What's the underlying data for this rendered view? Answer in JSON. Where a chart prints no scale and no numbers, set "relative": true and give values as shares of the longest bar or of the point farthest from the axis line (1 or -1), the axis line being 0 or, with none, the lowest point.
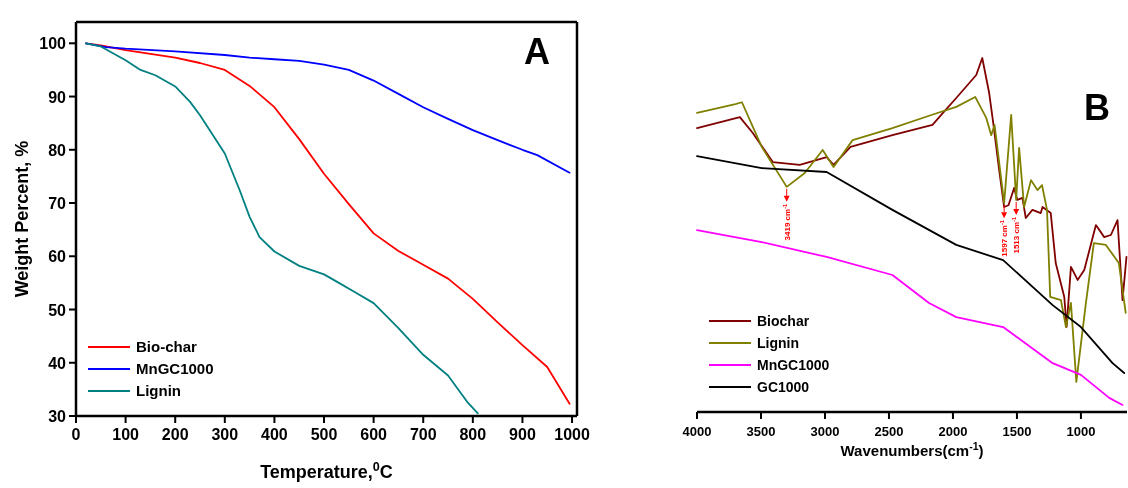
{
  "chart_data": [
    {
      "type": "line",
      "title": "A",
      "xlabel": "Temperature,$^{0}$C",
      "ylabel": "Weight Percent, %",
      "xlim": [
        0,
        1010
      ],
      "ylim": [
        30,
        104
      ],
      "xticks": [
        0,
        100,
        200,
        300,
        400,
        500,
        600,
        700,
        800,
        900,
        1000
      ],
      "yticks": [
        30,
        40,
        50,
        60,
        70,
        80,
        90,
        100
      ],
      "legend": "bottom left",
      "grid": false,
      "series": [
        {
          "name": "Bio-char",
          "color": "#ff0000",
          "x": [
            20,
            50,
            100,
            150,
            200,
            250,
            300,
            350,
            400,
            450,
            500,
            550,
            600,
            650,
            700,
            750,
            800,
            850,
            900,
            950,
            995
          ],
          "values": [
            100,
            99.6,
            98.7,
            98,
            97.3,
            96.3,
            95,
            92,
            88,
            82,
            75.5,
            69.8,
            64.3,
            61,
            58.4,
            55.8,
            52,
            47.6,
            43.3,
            39.2,
            32.3
          ]
        },
        {
          "name": "MnGC1000",
          "color": "#0000ff",
          "x": [
            20,
            60,
            100,
            200,
            300,
            350,
            400,
            450,
            500,
            550,
            600,
            650,
            700,
            750,
            800,
            850,
            900,
            930,
            995
          ],
          "values": [
            100,
            99.3,
            99,
            98.5,
            97.8,
            97.3,
            97,
            96.7,
            96,
            95,
            93,
            90.5,
            88,
            85.8,
            83.7,
            81.8,
            80,
            79,
            75.7
          ]
        },
        {
          "name": "Lignin",
          "color": "#008080",
          "x": [
            20,
            50,
            100,
            130,
            160,
            200,
            230,
            250,
            300,
            330,
            350,
            370,
            400,
            450,
            500,
            530,
            560,
            600,
            650,
            700,
            750,
            790,
            810
          ],
          "values": [
            100,
            99.4,
            96.8,
            95,
            94,
            91.9,
            89,
            86.5,
            79.3,
            72.4,
            67.4,
            63.6,
            60.9,
            58.2,
            56.6,
            55,
            53.4,
            51.2,
            46.5,
            41.5,
            37.6,
            32.5,
            30.5
          ]
        }
      ]
    },
    {
      "type": "line",
      "title": "B",
      "xlabel": "Wavenumbers(cm$^{-1}$)",
      "relative": true,
      "xlim": [
        4000,
        640
      ],
      "xticks": [
        4000,
        3500,
        3000,
        2500,
        2000,
        1500,
        1000
      ],
      "legend": "bottom left",
      "grid": false,
      "annotations": [
        {
          "text": "3419 cm$^{-1}$",
          "x": 3299,
          "y": 0.636
        },
        {
          "text": "1597 cm$^{-1}$",
          "x": 1600,
          "y": 0.59
        },
        {
          "text": "1513 cm$^{-1}$",
          "x": 1506,
          "y": 0.599
        }
      ],
      "series": [
        {
          "name": "Biochar",
          "color": "#800000",
          "x": [
            4000,
            3665,
            3564,
            3408,
            3197,
            2987,
            2933,
            2800,
            2473,
            2160,
            2078,
            1974,
            1818,
            1771,
            1717,
            1685,
            1639,
            1600,
            1566,
            1522,
            1497,
            1457,
            1431,
            1379,
            1314,
            1300,
            1236,
            1197,
            1130,
            1112,
            1078,
            1026,
            974,
            883,
            818,
            766,
            714,
            675,
            644
          ],
          "values": [
            0.802,
            0.833,
            0.788,
            0.706,
            0.698,
            0.72,
            0.698,
            0.749,
            0.782,
            0.811,
            0.845,
            0.887,
            0.952,
            1,
            0.901,
            0.816,
            0.684,
            0.579,
            0.584,
            0.633,
            0.599,
            0.605,
            0.548,
            0.571,
            0.562,
            0.579,
            0.562,
            0.421,
            0.325,
            0.24,
            0.41,
            0.373,
            0.401,
            0.528,
            0.494,
            0.5,
            0.542,
            0.316,
            0.438
          ]
        },
        {
          "name": "Lignin",
          "color": "#808000",
          "x": [
            4000,
            3700,
            3649,
            3494,
            3299,
            3158,
            3018,
            2933,
            2784,
            2473,
            2169,
            1974,
            1826,
            1740,
            1701,
            1675,
            1600,
            1545,
            1506,
            1483,
            1444,
            1390,
            1340,
            1304,
            1265,
            1240,
            1156,
            1117,
            1078,
            1036,
            961,
            899,
            805,
            704,
            650
          ],
          "values": [
            0.845,
            0.87,
            0.875,
            0.749,
            0.636,
            0.675,
            0.74,
            0.692,
            0.768,
            0.802,
            0.839,
            0.862,
            0.89,
            0.831,
            0.782,
            0.811,
            0.59,
            0.839,
            0.599,
            0.746,
            0.579,
            0.655,
            0.627,
            0.641,
            0.571,
            0.325,
            0.316,
            0.24,
            0.308,
            0.085,
            0.308,
            0.477,
            0.472,
            0.421,
            0.28
          ]
        },
        {
          "name": "MnGC1000",
          "color": "#ff00ff",
          "x": [
            4000,
            3494,
            2987,
            2473,
            2187,
            1974,
            1608,
            1221,
            1000,
            779,
            675
          ],
          "values": [
            0.514,
            0.48,
            0.438,
            0.387,
            0.308,
            0.268,
            0.24,
            0.138,
            0.105,
            0.04,
            0.02
          ]
        },
        {
          "name": "GC1000",
          "color": "#000000",
          "x": [
            4000,
            3494,
            2987,
            2473,
            1974,
            1608,
            1221,
            1000,
            753,
            662
          ],
          "values": [
            0.723,
            0.689,
            0.678,
            0.571,
            0.472,
            0.429,
            0.302,
            0.24,
            0.138,
            0.11
          ]
        }
      ]
    }
  ]
}
